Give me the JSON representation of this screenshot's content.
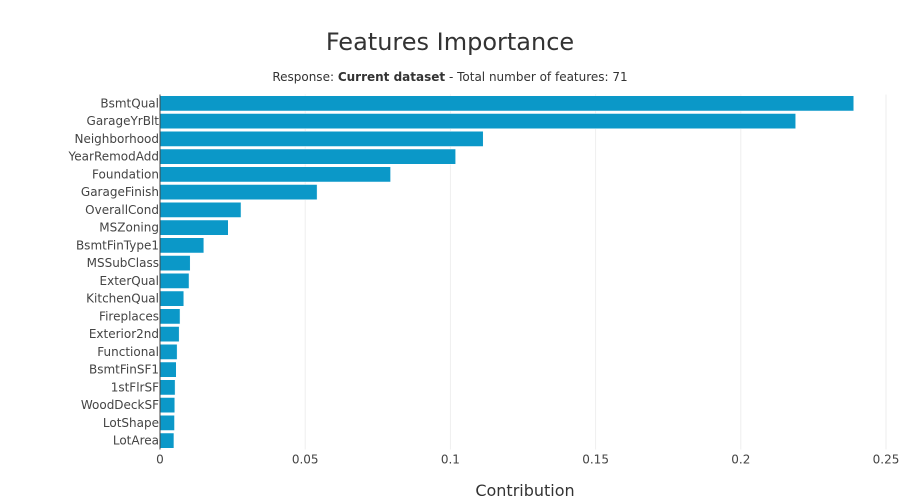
{
  "chart_data": {
    "type": "bar",
    "orientation": "horizontal",
    "title": "Features Importance",
    "subtitle": {
      "prefix": "Response: ",
      "dataset": "Current dataset",
      "suffix": " - Total number of features: 71"
    },
    "xlabel": "Contribution",
    "ylabel": "",
    "xlim": [
      0,
      0.25
    ],
    "xticks": [
      0,
      0.05,
      0.1,
      0.15,
      0.2,
      0.25
    ],
    "xtick_labels": [
      "0",
      "0.05",
      "0.1",
      "0.15",
      "0.2",
      "0.25"
    ],
    "grid": true,
    "bar_color": "#0b98c8",
    "categories": [
      "BsmtQual",
      "GarageYrBlt",
      "Neighborhood",
      "YearRemodAdd",
      "Foundation",
      "GarageFinish",
      "OverallCond",
      "MSZoning",
      "BsmtFinType1",
      "MSSubClass",
      "ExterQual",
      "KitchenQual",
      "Fireplaces",
      "Exterior2nd",
      "Functional",
      "BsmtFinSF1",
      "1stFlrSF",
      "WoodDeckSF",
      "LotShape",
      "LotArea"
    ],
    "values": [
      0.2389,
      0.2189,
      0.1113,
      0.1018,
      0.0794,
      0.0541,
      0.0279,
      0.0235,
      0.0151,
      0.0104,
      0.01,
      0.0082,
      0.0069,
      0.0066,
      0.0059,
      0.0056,
      0.0052,
      0.0051,
      0.005,
      0.0048
    ]
  }
}
